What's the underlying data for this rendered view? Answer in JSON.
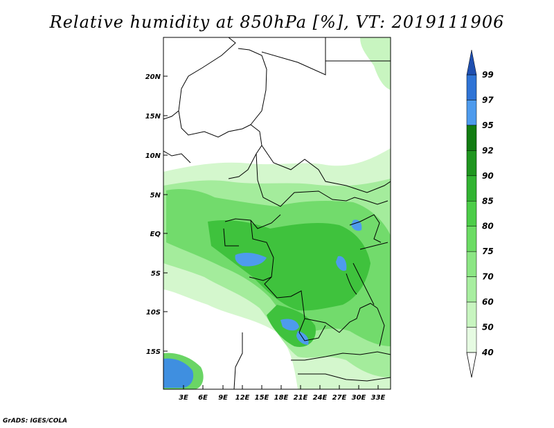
{
  "title": "Relative humidity at 850hPa [%], VT: 2019111906",
  "credit": "GrADS: IGES/COLA",
  "lat_ticks": [
    "20N",
    "15N",
    "10N",
    "5N",
    "EQ",
    "5S",
    "10S",
    "15S"
  ],
  "lon_ticks": [
    "3E",
    "6E",
    "9E",
    "12E",
    "15E",
    "18E",
    "21E",
    "24E",
    "27E",
    "30E",
    "33E"
  ],
  "colorbar": {
    "levels": [
      "40",
      "50",
      "60",
      "70",
      "75",
      "80",
      "85",
      "90",
      "92",
      "95",
      "97",
      "99"
    ],
    "colors": [
      "#ffffff",
      "#e6fbe2",
      "#c8f5c0",
      "#a8eea0",
      "#8ce684",
      "#6cdc64",
      "#4ccd48",
      "#32b432",
      "#1f961f",
      "#127d12",
      "#4e9bed",
      "#2f74d6",
      "#1f4fb0"
    ]
  },
  "colors": {
    "land_shade": "#7ad876",
    "water_blue": "#4e9bed",
    "border": "#000000"
  }
}
